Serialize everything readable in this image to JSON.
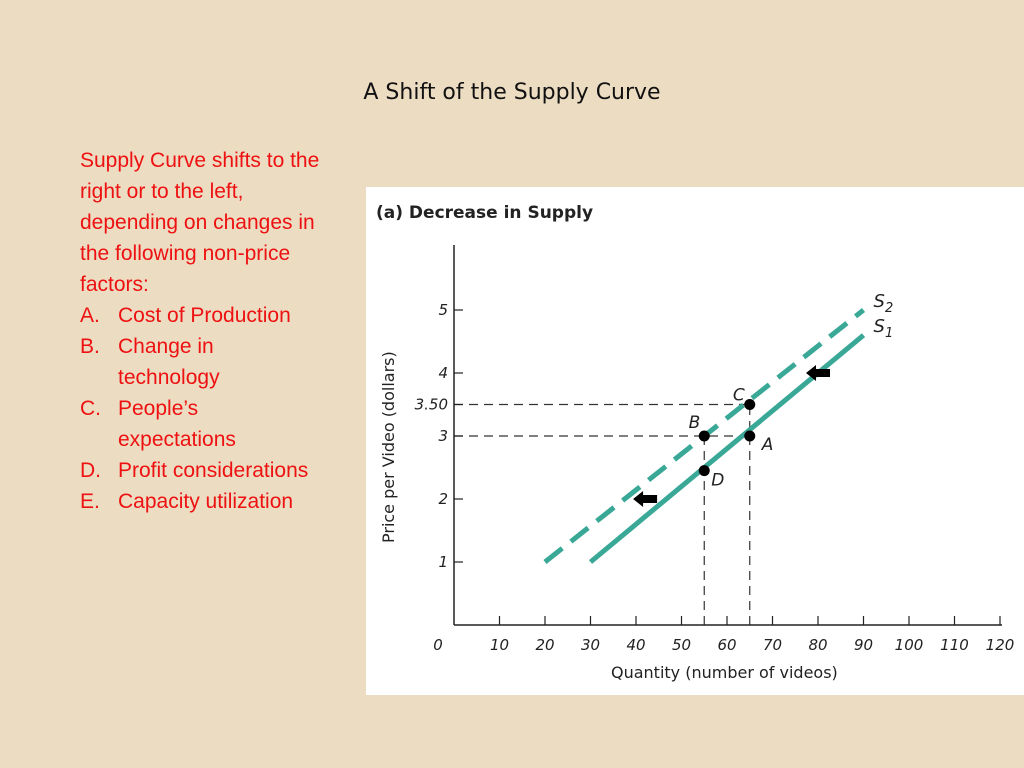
{
  "slide": {
    "title": "A Shift of the Supply Curve",
    "intro": "Supply Curve shifts to the right or to the left, depending on changes in the following non-price factors:",
    "factors": [
      {
        "marker": "A.",
        "label": "Cost of Production"
      },
      {
        "marker": "B.",
        "label": "Change in technology"
      },
      {
        "marker": "C.",
        "label": "People’s expectations"
      },
      {
        "marker": "D.",
        "label": "Profit considerations"
      },
      {
        "marker": "E.",
        "label": "Capacity utilization"
      }
    ]
  },
  "colors": {
    "background": "#ecdcc2",
    "text_red": "#ee1111",
    "curve": "#3aa896"
  },
  "chart_data": {
    "type": "line",
    "title": "(a) Decrease in Supply",
    "xlabel": "Quantity (number of videos)",
    "ylabel": "Price per Video (dollars)",
    "xlim": [
      0,
      120
    ],
    "ylim": [
      0,
      6
    ],
    "x_ticks": [
      "0",
      "10",
      "20",
      "30",
      "40",
      "50",
      "60",
      "70",
      "80",
      "90",
      "100",
      "110",
      "120"
    ],
    "y_ticks": [
      {
        "value": 1,
        "label": "1"
      },
      {
        "value": 2,
        "label": "2"
      },
      {
        "value": 3,
        "label": "3"
      },
      {
        "value": 3.5,
        "label": "3.50"
      },
      {
        "value": 4,
        "label": "4"
      },
      {
        "value": 5,
        "label": "5"
      }
    ],
    "series": [
      {
        "name": "S",
        "subscript": "1",
        "style": "solid",
        "points": [
          [
            30,
            1.0
          ],
          [
            90,
            4.6
          ]
        ]
      },
      {
        "name": "S",
        "subscript": "2",
        "style": "dashed",
        "points": [
          [
            20,
            1.0
          ],
          [
            90,
            5.0
          ]
        ]
      }
    ],
    "points": [
      {
        "label": "A",
        "x": 65,
        "y": 3.0
      },
      {
        "label": "B",
        "x": 55,
        "y": 3.0
      },
      {
        "label": "C",
        "x": 65,
        "y": 3.5
      },
      {
        "label": "D",
        "x": 55,
        "y": 2.45
      }
    ],
    "guides": [
      {
        "y": 3.5,
        "x_to": 65
      },
      {
        "y": 3.0,
        "x_to": 65
      },
      {
        "x": 55,
        "y_to": 3.0
      },
      {
        "x": 65,
        "y_to": 3.5
      }
    ],
    "shift_arrows": [
      {
        "direction": "left",
        "x": 80,
        "y": 4.0
      },
      {
        "direction": "left",
        "x": 42,
        "y": 2.0
      }
    ],
    "grid": false
  }
}
